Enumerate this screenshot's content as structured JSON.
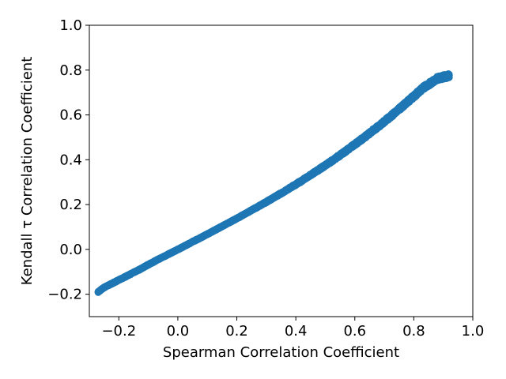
{
  "chart_data": {
    "type": "scatter",
    "title": "",
    "xlabel": "Spearman Correlation Coefficient",
    "ylabel": "Kendall τ Correlation Coefficient",
    "xlim": [
      -0.3,
      1.0
    ],
    "ylim": [
      -0.3,
      1.0
    ],
    "xticks": [
      -0.2,
      0.0,
      0.2,
      0.4,
      0.6,
      0.8,
      1.0
    ],
    "yticks": [
      -0.2,
      0.0,
      0.2,
      0.4,
      0.6,
      0.8,
      1.0
    ],
    "xtick_labels": [
      "−0.2",
      "0.0",
      "0.2",
      "0.4",
      "0.6",
      "0.8",
      "1.0"
    ],
    "ytick_labels": [
      "−0.2",
      "0.0",
      "0.2",
      "0.4",
      "0.6",
      "0.8",
      "1.0"
    ],
    "grid": false,
    "legend": "none",
    "marker_color": "#1f77b4",
    "series": [
      {
        "x": [
          -0.27,
          -0.25,
          -0.22,
          -0.19,
          -0.16,
          -0.13,
          -0.1,
          -0.07,
          -0.04,
          -0.01,
          0.02,
          0.05,
          0.08,
          0.11,
          0.14,
          0.17,
          0.2,
          0.23,
          0.26,
          0.29,
          0.32,
          0.35,
          0.38,
          0.41,
          0.44,
          0.47,
          0.5,
          0.53,
          0.56,
          0.59,
          0.62,
          0.65,
          0.68,
          0.71,
          0.74,
          0.77,
          0.8,
          0.83,
          0.86,
          0.88,
          0.9,
          0.91,
          0.92
        ],
        "y": [
          -0.19,
          -0.17,
          -0.15,
          -0.13,
          -0.11,
          -0.09,
          -0.068,
          -0.047,
          -0.027,
          -0.007,
          0.013,
          0.034,
          0.054,
          0.075,
          0.096,
          0.117,
          0.138,
          0.16,
          0.182,
          0.204,
          0.227,
          0.25,
          0.274,
          0.298,
          0.323,
          0.349,
          0.375,
          0.402,
          0.43,
          0.459,
          0.488,
          0.518,
          0.549,
          0.581,
          0.614,
          0.648,
          0.683,
          0.719,
          0.745,
          0.763,
          0.769,
          0.772,
          0.775
        ]
      }
    ]
  }
}
